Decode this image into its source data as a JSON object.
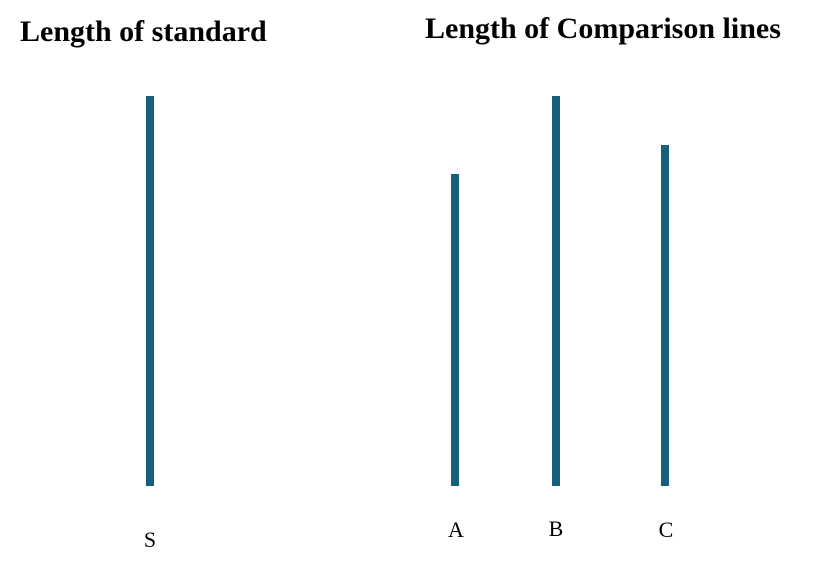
{
  "headings": {
    "standard": "Length of standard",
    "comparison": "Length of Comparison lines"
  },
  "line_color": "#15607a",
  "lines": {
    "standard": {
      "label": "S"
    },
    "a": {
      "label": "A"
    },
    "b": {
      "label": "B"
    },
    "c": {
      "label": "C"
    }
  }
}
